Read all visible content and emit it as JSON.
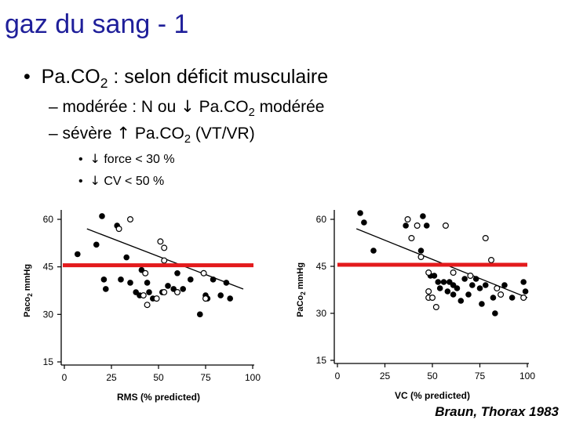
{
  "slide": {
    "title": "gaz du sang - 1",
    "bullet1": {
      "marker": "•",
      "pre": "Pa.CO",
      "sub": "2",
      "post": " : selon déficit musculaire"
    },
    "sub1": {
      "marker": "–",
      "pre": "modérée : N ou ",
      "arrow": "↓",
      "mid": " Pa.CO",
      "sub": "2",
      "post": " modérée"
    },
    "sub2": {
      "marker": "–",
      "pre": "sévère ",
      "arrow": "↑",
      "mid": " Pa.CO",
      "sub": "2",
      "post": " (VT/VR)"
    },
    "sub2_items": [
      {
        "marker": "•",
        "arrow": "↓",
        "text": " force < 30 %"
      },
      {
        "marker": "•",
        "arrow": "↓",
        "text": " CV < 50 %"
      }
    ],
    "credit": "Braun, Thorax 1983"
  },
  "chart_data": [
    {
      "type": "scatter",
      "xlabel": "RMS (% predicted)",
      "ylabel_main": "Paco",
      "ylabel_sub": "2",
      "ylabel_unit": " mmHg",
      "xlim": [
        0,
        100
      ],
      "ylim": [
        15,
        60
      ],
      "xticks": [
        0,
        25,
        50,
        75,
        100
      ],
      "yticks": [
        15,
        30,
        45,
        60
      ],
      "reference_line": {
        "y": 45.5,
        "x_range": [
          0,
          100
        ],
        "color": "#e31a1c"
      },
      "regression": [
        [
          12,
          57
        ],
        [
          95,
          38
        ]
      ],
      "series": [
        {
          "marker": "filled",
          "points": [
            [
              7,
              49
            ],
            [
              17,
              52
            ],
            [
              20,
              61
            ],
            [
              28,
              58
            ],
            [
              33,
              48
            ],
            [
              21,
              41
            ],
            [
              22,
              38
            ],
            [
              35,
              40
            ],
            [
              30,
              41
            ],
            [
              38,
              37
            ],
            [
              40,
              36
            ],
            [
              41,
              44
            ],
            [
              44,
              40
            ],
            [
              45,
              37
            ],
            [
              47,
              35
            ],
            [
              52,
              37
            ],
            [
              55,
              39
            ],
            [
              58,
              38
            ],
            [
              60,
              43
            ],
            [
              63,
              38
            ],
            [
              67,
              41
            ],
            [
              72,
              30
            ],
            [
              75,
              36
            ],
            [
              76,
              35
            ],
            [
              79,
              41
            ],
            [
              83,
              36
            ],
            [
              86,
              40
            ],
            [
              88,
              35
            ]
          ]
        },
        {
          "marker": "open",
          "points": [
            [
              29,
              57
            ],
            [
              35,
              60
            ],
            [
              43,
              43
            ],
            [
              42,
              36
            ],
            [
              44,
              33
            ],
            [
              49,
              35
            ],
            [
              51,
              53
            ],
            [
              53,
              51
            ],
            [
              53,
              47
            ],
            [
              53,
              37
            ],
            [
              60,
              37
            ],
            [
              74,
              43
            ],
            [
              75,
              35
            ]
          ]
        }
      ]
    },
    {
      "type": "scatter",
      "xlabel": "VC (% predicted)",
      "ylabel_main": "PaCo",
      "ylabel_sub": "2",
      "ylabel_unit": " mmHg",
      "xlim": [
        0,
        100
      ],
      "ylim": [
        15,
        60
      ],
      "xticks": [
        0,
        25,
        50,
        75,
        100
      ],
      "yticks": [
        15,
        30,
        45,
        60
      ],
      "reference_line": {
        "y": 45.5,
        "x_range": [
          0,
          100
        ],
        "color": "#e31a1c"
      },
      "regression": [
        [
          10,
          57
        ],
        [
          100,
          35
        ]
      ],
      "series": [
        {
          "marker": "filled",
          "points": [
            [
              12,
              62
            ],
            [
              14,
              59
            ],
            [
              19,
              50
            ],
            [
              36,
              58
            ],
            [
              44,
              50
            ],
            [
              45,
              61
            ],
            [
              47,
              58
            ],
            [
              49,
              42
            ],
            [
              51,
              42
            ],
            [
              53,
              40
            ],
            [
              54,
              38
            ],
            [
              56,
              40
            ],
            [
              58,
              37
            ],
            [
              59,
              40
            ],
            [
              61,
              39
            ],
            [
              61,
              36
            ],
            [
              63,
              38
            ],
            [
              65,
              34
            ],
            [
              67,
              41
            ],
            [
              69,
              36
            ],
            [
              71,
              39
            ],
            [
              73,
              41
            ],
            [
              75,
              38
            ],
            [
              76,
              33
            ],
            [
              78,
              39
            ],
            [
              82,
              35
            ],
            [
              83,
              30
            ],
            [
              88,
              39
            ],
            [
              92,
              35
            ],
            [
              98,
              40
            ],
            [
              99,
              37
            ]
          ]
        },
        {
          "marker": "open",
          "points": [
            [
              37,
              60
            ],
            [
              39,
              54
            ],
            [
              42,
              58
            ],
            [
              44,
              48
            ],
            [
              48,
              43
            ],
            [
              48,
              37
            ],
            [
              48,
              35
            ],
            [
              50,
              35
            ],
            [
              52,
              32
            ],
            [
              57,
              58
            ],
            [
              61,
              43
            ],
            [
              70,
              42
            ],
            [
              78,
              54
            ],
            [
              81,
              47
            ],
            [
              84,
              38
            ],
            [
              86,
              36
            ],
            [
              98,
              35
            ]
          ]
        }
      ]
    }
  ]
}
